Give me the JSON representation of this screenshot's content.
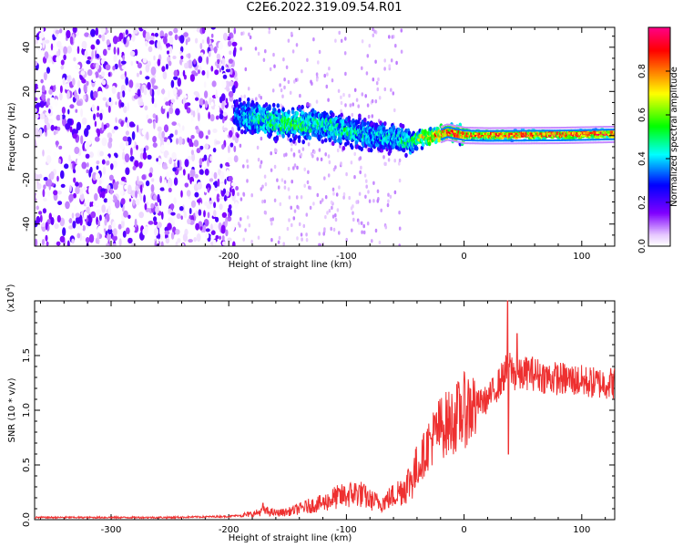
{
  "title": "C2E6.2022.319.09.54.R01",
  "chart_data": [
    {
      "type": "heatmap",
      "xlabel": "Height of straight line (km)",
      "ylabel": "Frequency (Hz)",
      "xlim": [
        -365,
        128
      ],
      "ylim": [
        -50,
        49
      ],
      "xticks": [
        -300,
        -200,
        -100,
        0,
        100
      ],
      "yticks": [
        -40,
        -20,
        0,
        20,
        40
      ],
      "colorbar": {
        "label": "Normalized spectral amplitude",
        "range": [
          0,
          1
        ],
        "ticks": [
          0.0,
          0.2,
          0.4,
          0.6,
          0.8
        ],
        "colormap": [
          "#ffffff",
          "#e6c8ff",
          "#8000ff",
          "#0000ff",
          "#00ffff",
          "#00ff00",
          "#ffff00",
          "#ff8000",
          "#ff0000",
          "#ff0080"
        ]
      },
      "ridge": {
        "x": [
          -195,
          -180,
          -160,
          -140,
          -120,
          -100,
          -80,
          -60,
          -45,
          -35,
          -25,
          -15,
          0,
          20,
          50,
          80,
          110,
          128
        ],
        "center_hz": [
          9,
          8,
          6,
          5,
          5,
          2,
          0,
          -1,
          -3,
          -1,
          0,
          2,
          0.5,
          0.3,
          0.4,
          0.5,
          0.8,
          1.0
        ],
        "peak_amplitude": [
          0.35,
          0.5,
          0.55,
          0.55,
          0.5,
          0.5,
          0.45,
          0.45,
          0.55,
          0.75,
          0.85,
          0.9,
          0.95,
          0.95,
          0.95,
          0.95,
          0.95,
          0.95
        ]
      }
    },
    {
      "type": "line",
      "xlabel": "Height of straight line (km)",
      "ylabel": "SNR (10 * v/v)",
      "yscale_label": "(x10",
      "yscale_exponent": "4",
      "xlim": [
        -365,
        128
      ],
      "ylim": [
        0,
        2.0
      ],
      "xticks": [
        -300,
        -200,
        -100,
        0,
        100
      ],
      "yticks": [
        0.0,
        0.5,
        1.0,
        1.5
      ],
      "color": "#ee3030",
      "series": [
        {
          "x": [
            -365,
            -300,
            -250,
            -200,
            -180,
            -170,
            -160,
            -150,
            -140,
            -130,
            -120,
            -110,
            -100,
            -90,
            -80,
            -70,
            -60,
            -50,
            -40,
            -30,
            -20,
            -10,
            0,
            10,
            20,
            30,
            38,
            45,
            55,
            70,
            90,
            110,
            128
          ],
          "y": [
            0.02,
            0.02,
            0.02,
            0.03,
            0.05,
            0.08,
            0.06,
            0.07,
            0.1,
            0.13,
            0.15,
            0.2,
            0.22,
            0.25,
            0.18,
            0.15,
            0.22,
            0.3,
            0.45,
            0.7,
            0.85,
            0.9,
            1.0,
            1.05,
            1.1,
            1.25,
            1.4,
            1.3,
            1.35,
            1.3,
            1.28,
            1.25,
            1.25
          ]
        }
      ]
    }
  ]
}
